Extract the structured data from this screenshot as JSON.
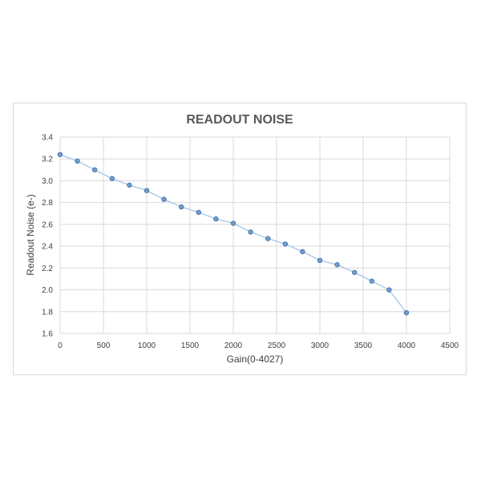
{
  "chart_data": {
    "type": "line",
    "title": "READOUT NOISE",
    "xlabel": "Gain(0-4027)",
    "ylabel": "Readout Noise (e-)",
    "xlim": [
      0,
      4500
    ],
    "ylim": [
      1.6,
      3.4
    ],
    "x_ticks": [
      "0",
      "500",
      "1000",
      "1500",
      "2000",
      "2500",
      "3000",
      "3500",
      "4000",
      "4500"
    ],
    "y_ticks": [
      "1.6",
      "1.8",
      "2.0",
      "2.2",
      "2.4",
      "2.6",
      "2.8",
      "3.0",
      "3.2",
      "3.4"
    ],
    "grid": true,
    "markers": true,
    "series": [
      {
        "x": [
          0,
          200,
          400,
          600,
          800,
          1000,
          1200,
          1400,
          1600,
          1800,
          2000,
          2200,
          2400,
          2600,
          2800,
          3000,
          3200,
          3400,
          3600,
          3800,
          4000
        ],
        "y": [
          3.24,
          3.18,
          3.1,
          3.02,
          2.96,
          2.91,
          2.83,
          2.76,
          2.71,
          2.65,
          2.61,
          2.53,
          2.47,
          2.42,
          2.35,
          2.27,
          2.23,
          2.16,
          2.08,
          2.0,
          1.79
        ]
      }
    ],
    "colors": {
      "line": "#9dc3e6",
      "marker_fill": "#6f9bd1",
      "marker_stroke": "#41719c",
      "grid": "#d9d9d9"
    }
  }
}
